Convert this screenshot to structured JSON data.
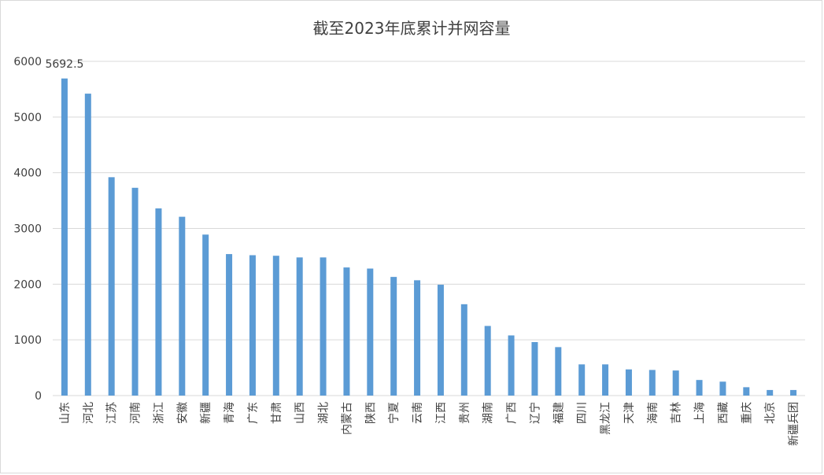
{
  "chart_data": {
    "type": "bar",
    "title": "截至2023年底累计并网容量",
    "xlabel": "",
    "ylabel": "",
    "ylim": [
      0,
      6000
    ],
    "yticks": [
      0,
      1000,
      2000,
      3000,
      4000,
      5000,
      6000
    ],
    "grid": true,
    "legend": "none",
    "bar_color": "#5b9bd5",
    "categories": [
      "山东",
      "河北",
      "江苏",
      "河南",
      "浙江",
      "安徽",
      "新疆",
      "青海",
      "广东",
      "甘肃",
      "山西",
      "湖北",
      "内蒙古",
      "陕西",
      "宁夏",
      "云南",
      "江西",
      "贵州",
      "湖南",
      "广西",
      "辽宁",
      "福建",
      "四川",
      "黑龙江",
      "天津",
      "海南",
      "吉林",
      "上海",
      "西藏",
      "重庆",
      "北京",
      "新疆兵团"
    ],
    "values": [
      5692.5,
      5420,
      3920,
      3730,
      3360,
      3210,
      2890,
      2540,
      2520,
      2510,
      2480,
      2480,
      2300,
      2280,
      2130,
      2070,
      1990,
      1640,
      1250,
      1080,
      960,
      870,
      560,
      560,
      470,
      460,
      450,
      280,
      250,
      150,
      100,
      100
    ],
    "data_labels": [
      {
        "index": 0,
        "text": "5692.5"
      }
    ]
  }
}
